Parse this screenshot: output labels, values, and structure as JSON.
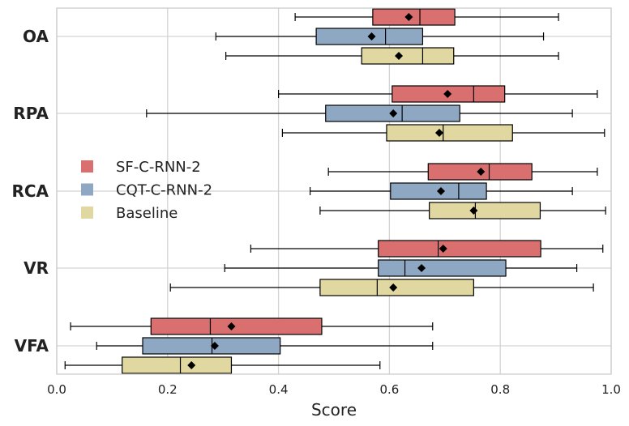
{
  "chart_data": {
    "type": "boxplot",
    "orientation": "horizontal",
    "categories": [
      "OA",
      "RPA",
      "RCA",
      "VR",
      "VFA"
    ],
    "xlabel": "Score",
    "xlim": [
      0.0,
      1.0
    ],
    "xticks": [
      "0.0",
      "0.2",
      "0.4",
      "0.6",
      "0.8",
      "1.0"
    ],
    "grid": true,
    "legend_position": "center-left",
    "mean_marker": "diamond",
    "series": [
      {
        "name": "SF-C-RNN-2",
        "color": "#d9706f",
        "boxes": [
          {
            "category": "OA",
            "whisker_low": 0.43,
            "q1": 0.57,
            "median": 0.655,
            "q3": 0.718,
            "whisker_high": 0.905,
            "mean": 0.635
          },
          {
            "category": "RPA",
            "whisker_low": 0.4,
            "q1": 0.605,
            "median": 0.752,
            "q3": 0.808,
            "whisker_high": 0.975,
            "mean": 0.705
          },
          {
            "category": "RCA",
            "whisker_low": 0.49,
            "q1": 0.67,
            "median": 0.78,
            "q3": 0.857,
            "whisker_high": 0.975,
            "mean": 0.765
          },
          {
            "category": "VR",
            "whisker_low": 0.35,
            "q1": 0.58,
            "median": 0.688,
            "q3": 0.873,
            "whisker_high": 0.985,
            "mean": 0.697
          },
          {
            "category": "VFA",
            "whisker_low": 0.025,
            "q1": 0.17,
            "median": 0.277,
            "q3": 0.478,
            "whisker_high": 0.678,
            "mean": 0.315
          }
        ]
      },
      {
        "name": "CQT-C-RNN-2",
        "color": "#8ea8c3",
        "boxes": [
          {
            "category": "OA",
            "whisker_low": 0.287,
            "q1": 0.468,
            "median": 0.593,
            "q3": 0.66,
            "whisker_high": 0.878,
            "mean": 0.568
          },
          {
            "category": "RPA",
            "whisker_low": 0.162,
            "q1": 0.485,
            "median": 0.623,
            "q3": 0.727,
            "whisker_high": 0.93,
            "mean": 0.607
          },
          {
            "category": "RCA",
            "whisker_low": 0.457,
            "q1": 0.602,
            "median": 0.725,
            "q3": 0.775,
            "whisker_high": 0.93,
            "mean": 0.693
          },
          {
            "category": "VR",
            "whisker_low": 0.303,
            "q1": 0.58,
            "median": 0.628,
            "q3": 0.81,
            "whisker_high": 0.938,
            "mean": 0.658
          },
          {
            "category": "VFA",
            "whisker_low": 0.072,
            "q1": 0.155,
            "median": 0.28,
            "q3": 0.403,
            "whisker_high": 0.678,
            "mean": 0.285
          }
        ]
      },
      {
        "name": "Baseline",
        "color": "#e0d8a0",
        "boxes": [
          {
            "category": "OA",
            "whisker_low": 0.305,
            "q1": 0.55,
            "median": 0.66,
            "q3": 0.716,
            "whisker_high": 0.905,
            "mean": 0.617
          },
          {
            "category": "RPA",
            "whisker_low": 0.407,
            "q1": 0.595,
            "median": 0.697,
            "q3": 0.822,
            "whisker_high": 0.988,
            "mean": 0.69
          },
          {
            "category": "RCA",
            "whisker_low": 0.475,
            "q1": 0.672,
            "median": 0.755,
            "q3": 0.872,
            "whisker_high": 0.99,
            "mean": 0.752
          },
          {
            "category": "VR",
            "whisker_low": 0.205,
            "q1": 0.475,
            "median": 0.578,
            "q3": 0.752,
            "whisker_high": 0.968,
            "mean": 0.607
          },
          {
            "category": "VFA",
            "whisker_low": 0.015,
            "q1": 0.118,
            "median": 0.223,
            "q3": 0.315,
            "whisker_high": 0.583,
            "mean": 0.243
          }
        ]
      }
    ]
  }
}
